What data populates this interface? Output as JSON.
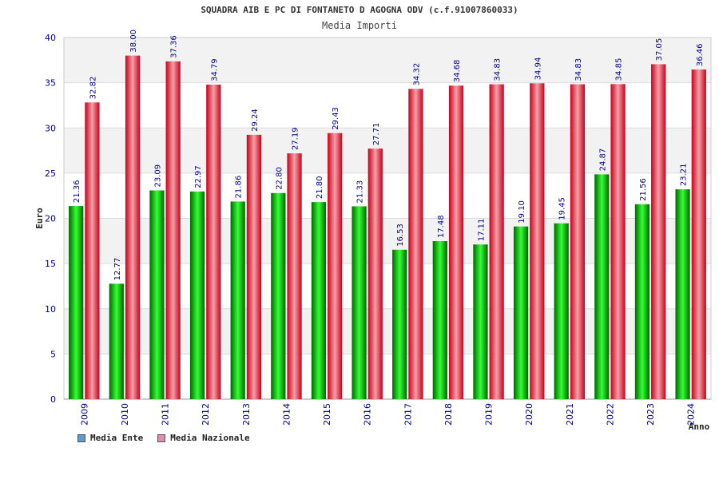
{
  "colors": {
    "ente": "#00b000",
    "nazionale": "#e8001c",
    "legend_ente": "#5b9bd5",
    "legend_nazionale": "#e08bb0",
    "axis_text": "#00008b",
    "grid_band": "#f2f2f2"
  },
  "chart_data": {
    "type": "bar",
    "title": "SQUADRA AIB E PC DI FONTANETO D AGOGNA ODV (c.f.91007860033)",
    "subtitle": "Media Importi",
    "xlabel": "Anno",
    "ylabel": "Euro",
    "ylim": [
      0,
      40
    ],
    "yticks": [
      0,
      5,
      10,
      15,
      20,
      25,
      30,
      35,
      40
    ],
    "categories": [
      "2009",
      "2010",
      "2011",
      "2012",
      "2013",
      "2014",
      "2015",
      "2016",
      "2017",
      "2018",
      "2019",
      "2020",
      "2021",
      "2022",
      "2023",
      "2024"
    ],
    "series": [
      {
        "name": "Media Ente",
        "values": [
          21.36,
          12.77,
          23.09,
          22.97,
          21.86,
          22.8,
          21.8,
          21.33,
          16.53,
          17.48,
          17.11,
          19.1,
          19.45,
          24.87,
          21.56,
          23.21
        ],
        "labels": [
          "21.36",
          "12.77",
          "23.09",
          "22.97",
          "21.86",
          "22.80",
          "21.80",
          "21.33",
          "16.53",
          "17.48",
          "17.11",
          "19.10",
          "19.45",
          "24.87",
          "21.56",
          "23.21"
        ]
      },
      {
        "name": "Media Nazionale",
        "values": [
          32.82,
          38.0,
          37.36,
          34.79,
          29.24,
          27.19,
          29.43,
          27.71,
          34.32,
          34.68,
          34.83,
          34.94,
          34.83,
          34.85,
          37.05,
          36.46
        ],
        "labels": [
          "32.82",
          "38.00",
          "37.36",
          "34.79",
          "29.24",
          "27.19",
          "29.43",
          "27.71",
          "34.32",
          "34.68",
          "34.83",
          "34.94",
          "34.83",
          "34.85",
          "37.05",
          "36.46"
        ]
      }
    ],
    "grid": true,
    "legend_position": "bottom-left"
  }
}
